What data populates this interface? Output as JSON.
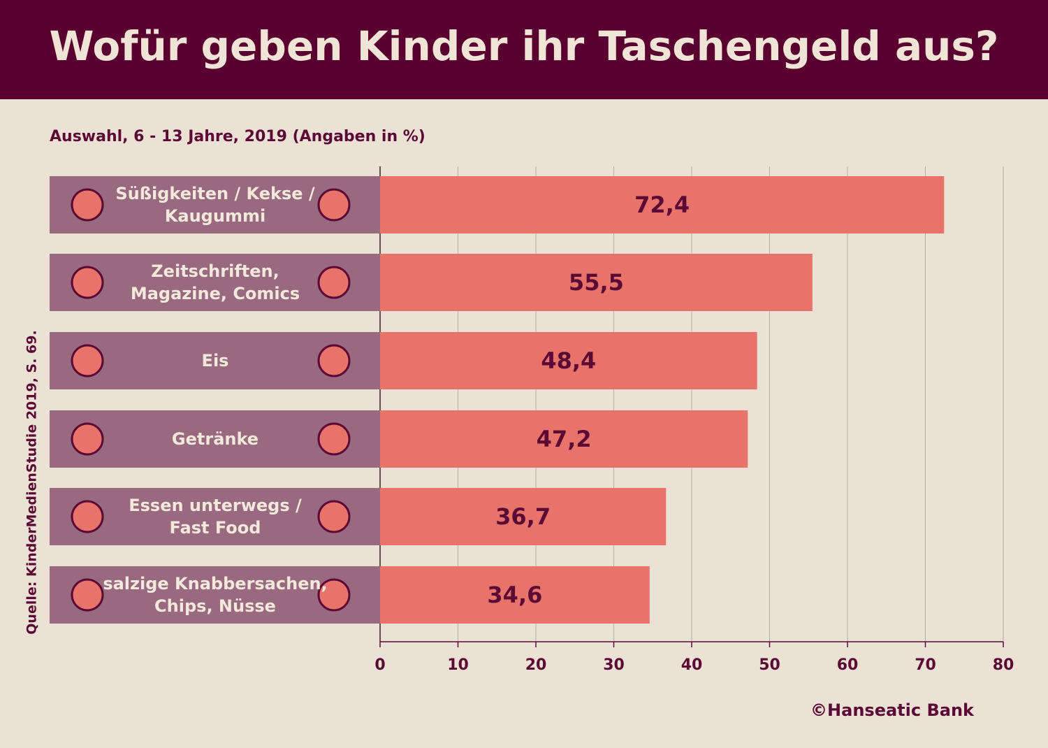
{
  "chart_data": {
    "type": "bar",
    "title": "Wofür geben Kinder ihr Taschengeld aus?",
    "subtitle": "Auswahl, 6 - 13 Jahre, 2019 (Angaben in %)",
    "source": "Quelle: KinderMedienStudie 2019, S. 69.",
    "credit": "©Hanseatic Bank",
    "categories": [
      "Süßigkeiten / Kekse /\nKaugummi",
      "Zeitschriften,\nMagazine, Comics",
      "Eis",
      "Getränke",
      "Essen unterwegs /\nFast Food",
      "salzige Knabbersachen,\nChips, Nüsse"
    ],
    "values": [
      72.4,
      55.5,
      48.4,
      47.2,
      36.7,
      34.6
    ],
    "value_labels": [
      "72,4",
      "55,5",
      "48,4",
      "47,2",
      "36,7",
      "34,6"
    ],
    "color": "#e8736a",
    "xlim": [
      0,
      80
    ],
    "xticks": [
      0,
      10,
      20,
      30,
      40,
      50,
      60,
      70,
      80
    ],
    "grid": true
  }
}
